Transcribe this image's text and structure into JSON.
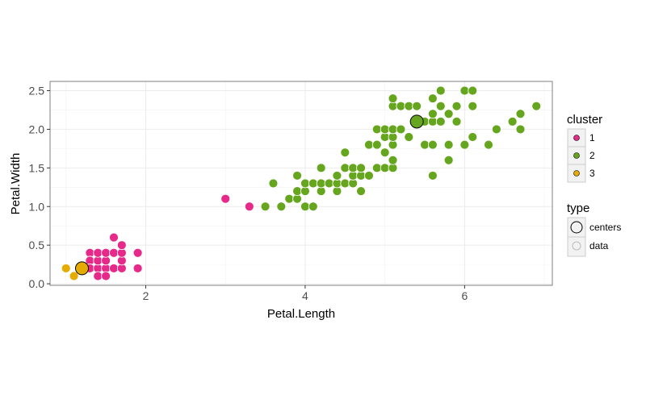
{
  "chart_data": {
    "type": "scatter",
    "xlabel": "Petal.Length",
    "ylabel": "Petal.Width",
    "xlim": [
      0.8,
      7.1
    ],
    "ylim": [
      -0.02,
      2.62
    ],
    "x_ticks": [
      2,
      4,
      6
    ],
    "x_tick_labels": [
      "2",
      "4",
      "6"
    ],
    "y_ticks": [
      0.0,
      0.5,
      1.0,
      1.5,
      2.0,
      2.5
    ],
    "y_tick_labels": [
      "0.0",
      "0.5",
      "1.0",
      "1.5",
      "2.0",
      "2.5"
    ],
    "grid": true,
    "legend_position": "right",
    "cluster_legend": {
      "title": "cluster",
      "entries": [
        {
          "label": "1",
          "color": "#e7298a"
        },
        {
          "label": "2",
          "color": "#66a61e"
        },
        {
          "label": "3",
          "color": "#e6ab02"
        }
      ]
    },
    "type_legend": {
      "title": "type",
      "entries": [
        {
          "label": "centers"
        },
        {
          "label": "data"
        }
      ]
    },
    "series": [
      {
        "cluster": "1",
        "color": "#e7298a",
        "points": [
          [
            1.3,
            0.4
          ],
          [
            1.3,
            0.3
          ],
          [
            1.3,
            0.2
          ],
          [
            1.4,
            0.2
          ],
          [
            1.4,
            0.3
          ],
          [
            1.4,
            0.1
          ],
          [
            1.4,
            0.4
          ],
          [
            1.5,
            0.2
          ],
          [
            1.5,
            0.1
          ],
          [
            1.5,
            0.3
          ],
          [
            1.5,
            0.4
          ],
          [
            1.6,
            0.2
          ],
          [
            1.6,
            0.4
          ],
          [
            1.6,
            0.6
          ],
          [
            1.7,
            0.2
          ],
          [
            1.7,
            0.3
          ],
          [
            1.7,
            0.4
          ],
          [
            1.7,
            0.5
          ],
          [
            1.9,
            0.4
          ],
          [
            1.9,
            0.2
          ],
          [
            3.0,
            1.1
          ],
          [
            3.3,
            1.0
          ]
        ]
      },
      {
        "cluster": "2",
        "color": "#66a61e",
        "points": [
          [
            3.5,
            1.0
          ],
          [
            3.6,
            1.3
          ],
          [
            3.7,
            1.0
          ],
          [
            3.8,
            1.1
          ],
          [
            3.9,
            1.1
          ],
          [
            3.9,
            1.2
          ],
          [
            3.9,
            1.4
          ],
          [
            4.0,
            1.0
          ],
          [
            4.0,
            1.2
          ],
          [
            4.0,
            1.3
          ],
          [
            4.1,
            1.0
          ],
          [
            4.1,
            1.3
          ],
          [
            4.2,
            1.2
          ],
          [
            4.2,
            1.3
          ],
          [
            4.2,
            1.5
          ],
          [
            4.3,
            1.3
          ],
          [
            4.4,
            1.2
          ],
          [
            4.4,
            1.3
          ],
          [
            4.4,
            1.4
          ],
          [
            4.5,
            1.3
          ],
          [
            4.5,
            1.5
          ],
          [
            4.5,
            1.7
          ],
          [
            4.6,
            1.3
          ],
          [
            4.6,
            1.4
          ],
          [
            4.6,
            1.5
          ],
          [
            4.7,
            1.2
          ],
          [
            4.7,
            1.4
          ],
          [
            4.7,
            1.5
          ],
          [
            4.8,
            1.4
          ],
          [
            4.8,
            1.8
          ],
          [
            4.9,
            1.5
          ],
          [
            4.9,
            1.8
          ],
          [
            4.9,
            2.0
          ],
          [
            5.0,
            1.5
          ],
          [
            5.0,
            1.7
          ],
          [
            5.0,
            1.9
          ],
          [
            5.0,
            2.0
          ],
          [
            5.1,
            1.5
          ],
          [
            5.1,
            1.6
          ],
          [
            5.1,
            1.8
          ],
          [
            5.1,
            1.9
          ],
          [
            5.1,
            2.0
          ],
          [
            5.1,
            2.3
          ],
          [
            5.1,
            2.4
          ],
          [
            5.2,
            2.0
          ],
          [
            5.2,
            2.3
          ],
          [
            5.3,
            1.9
          ],
          [
            5.3,
            2.3
          ],
          [
            5.4,
            2.1
          ],
          [
            5.4,
            2.3
          ],
          [
            5.5,
            1.8
          ],
          [
            5.5,
            2.1
          ],
          [
            5.6,
            1.4
          ],
          [
            5.6,
            1.8
          ],
          [
            5.6,
            2.1
          ],
          [
            5.6,
            2.2
          ],
          [
            5.6,
            2.4
          ],
          [
            5.7,
            2.1
          ],
          [
            5.7,
            2.3
          ],
          [
            5.7,
            2.5
          ],
          [
            5.8,
            1.6
          ],
          [
            5.8,
            1.8
          ],
          [
            5.8,
            2.2
          ],
          [
            5.9,
            2.1
          ],
          [
            5.9,
            2.3
          ],
          [
            6.0,
            1.8
          ],
          [
            6.0,
            2.5
          ],
          [
            6.1,
            1.9
          ],
          [
            6.1,
            2.3
          ],
          [
            6.1,
            2.5
          ],
          [
            6.3,
            1.8
          ],
          [
            6.4,
            2.0
          ],
          [
            6.6,
            2.1
          ],
          [
            6.7,
            2.0
          ],
          [
            6.7,
            2.2
          ],
          [
            6.9,
            2.3
          ]
        ]
      },
      {
        "cluster": "3",
        "color": "#e6ab02",
        "points": [
          [
            1.0,
            0.2
          ],
          [
            1.1,
            0.1
          ],
          [
            1.2,
            0.2
          ]
        ]
      }
    ],
    "centers": [
      {
        "cluster": "3",
        "x": 1.2,
        "y": 0.2,
        "color": "#e6ab02"
      },
      {
        "cluster": "2",
        "x": 5.4,
        "y": 2.1,
        "color": "#66a61e"
      }
    ]
  }
}
